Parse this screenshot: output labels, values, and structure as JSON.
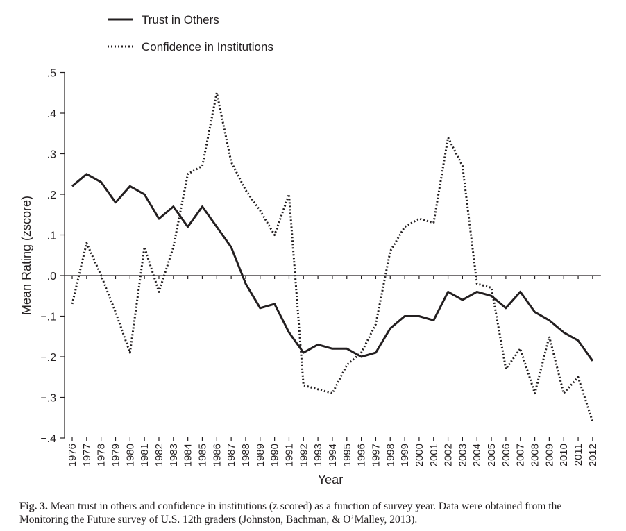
{
  "chart_data": {
    "type": "line",
    "title": "",
    "xlabel": "Year",
    "ylabel": "Mean Rating (zscore)",
    "ylim": [
      -0.4,
      0.5
    ],
    "yticks": [
      0.5,
      0.4,
      0.3,
      0.2,
      0.1,
      0.0,
      -0.1,
      -0.2,
      -0.3,
      -0.4
    ],
    "ytick_labels": [
      ".5",
      ".4",
      ".3",
      ".2",
      ".1",
      ".0",
      "−.1",
      "−.2",
      "−.3",
      "−.4"
    ],
    "x": [
      "1976",
      "1977",
      "1978",
      "1979",
      "1980",
      "1981",
      "1982",
      "1983",
      "1984",
      "1985",
      "1986",
      "1987",
      "1988",
      "1989",
      "1990",
      "1991",
      "1992",
      "1993",
      "1994",
      "1995",
      "1996",
      "1997",
      "1998",
      "1999",
      "2000",
      "2001",
      "2002",
      "2003",
      "2004",
      "2005",
      "2006",
      "2007",
      "2008",
      "2009",
      "2010",
      "2011",
      "2012"
    ],
    "legend_position": "top-left",
    "grid": false,
    "series": [
      {
        "name": "Trust in Others",
        "style": "solid",
        "color": "#231f20",
        "values": [
          0.22,
          0.25,
          0.23,
          0.18,
          0.22,
          0.2,
          0.14,
          0.17,
          0.12,
          0.17,
          0.12,
          0.07,
          -0.02,
          -0.08,
          -0.07,
          -0.14,
          -0.19,
          -0.17,
          -0.18,
          -0.18,
          -0.2,
          -0.19,
          -0.13,
          -0.1,
          -0.1,
          -0.11,
          -0.04,
          -0.06,
          -0.04,
          -0.05,
          -0.08,
          -0.04,
          -0.09,
          -0.11,
          -0.14,
          -0.16,
          -0.21
        ]
      },
      {
        "name": "Confidence in Institutions",
        "style": "dotted",
        "color": "#231f20",
        "values": [
          -0.07,
          0.08,
          0.0,
          -0.09,
          -0.19,
          0.07,
          -0.04,
          0.07,
          0.25,
          0.27,
          0.45,
          0.28,
          0.21,
          0.16,
          0.1,
          0.2,
          -0.27,
          -0.28,
          -0.29,
          -0.22,
          -0.19,
          -0.12,
          0.06,
          0.12,
          0.14,
          0.13,
          0.34,
          0.27,
          -0.02,
          -0.03,
          -0.23,
          -0.18,
          -0.29,
          -0.15,
          -0.29,
          -0.25,
          -0.36
        ]
      }
    ]
  },
  "caption": {
    "label": "Fig. 3.",
    "text": "Mean trust in others and confidence in institutions (z scored) as a function of survey year. Data were obtained from the Monitoring the Future survey of U.S. 12th graders (Johnston, Bachman, & O’Malley, 2013)."
  }
}
